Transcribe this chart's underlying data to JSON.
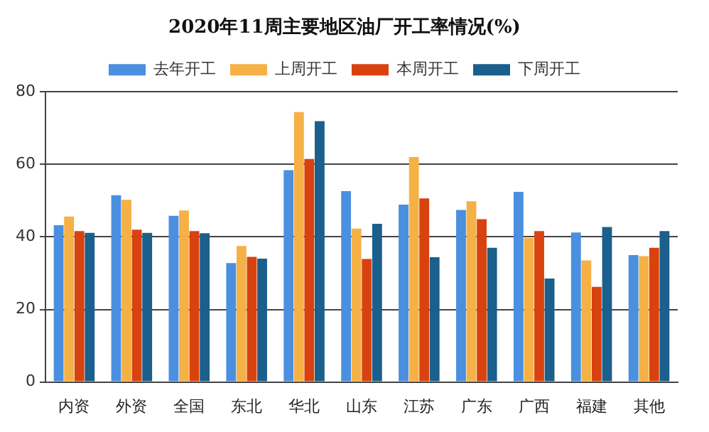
{
  "chart_data": {
    "type": "bar",
    "title": "2020年11周主要地区油厂开工率情况(%)",
    "categories": [
      "内资",
      "外资",
      "全国",
      "东北",
      "华北",
      "山东",
      "江苏",
      "广东",
      "广西",
      "福建",
      "其他"
    ],
    "series": [
      {
        "name": "去年开工",
        "color": "#4a8fe0",
        "values": [
          43.2,
          51.5,
          45.8,
          32.8,
          58.4,
          52.6,
          48.9,
          47.4,
          52.4,
          41.2,
          35.0
        ]
      },
      {
        "name": "上周开工",
        "color": "#f5b146",
        "values": [
          45.6,
          50.2,
          47.3,
          37.5,
          74.4,
          42.3,
          62.0,
          49.8,
          39.7,
          33.5,
          34.7
        ]
      },
      {
        "name": "本周开工",
        "color": "#d8420f",
        "values": [
          41.6,
          42.0,
          41.6,
          34.5,
          61.5,
          33.9,
          50.6,
          44.9,
          41.6,
          26.2,
          37.0
        ]
      },
      {
        "name": "下周开工",
        "color": "#1b5f8c",
        "values": [
          41.1,
          41.1,
          41.0,
          34.0,
          71.9,
          43.6,
          34.4,
          37.0,
          28.5,
          42.7,
          41.6
        ]
      }
    ],
    "ylim": [
      0,
      80
    ],
    "yticks": [
      0,
      20,
      40,
      60,
      80
    ],
    "grid": "y",
    "legend": "top"
  }
}
